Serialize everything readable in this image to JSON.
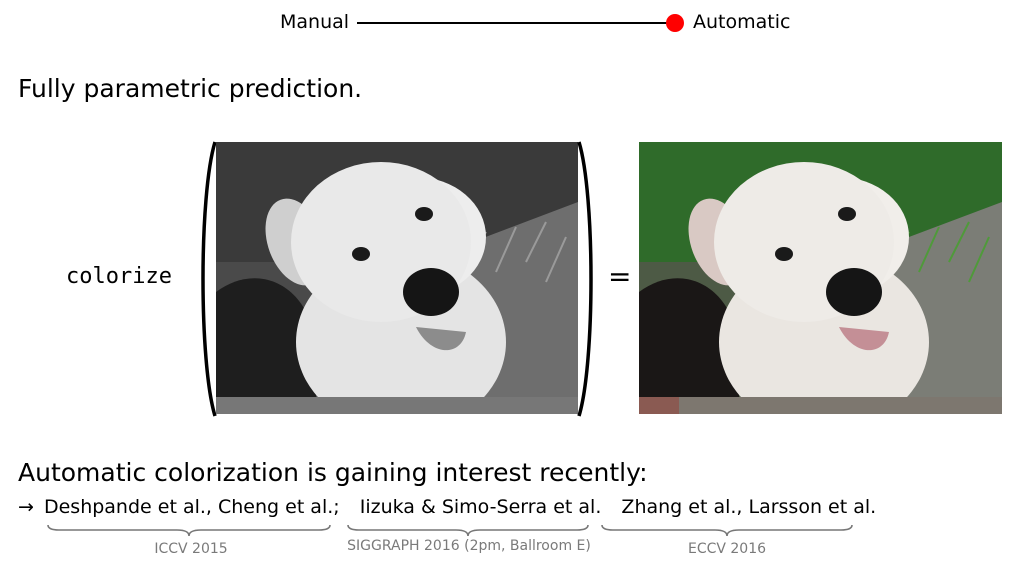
{
  "slider": {
    "left_label": "Manual",
    "right_label": "Automatic",
    "knob_color": "#ff0000"
  },
  "heading": "Fully parametric prediction.",
  "function_name": "colorize",
  "equals": "=",
  "section_heading": "Automatic colorization is gaining interest recently:",
  "refs": {
    "arrow": "→",
    "groups": [
      {
        "text": "Deshpande et al., Cheng et al.",
        "sep": ";",
        "venue": "ICCV 2015"
      },
      {
        "text": "Iizuka & Simo-Serra et al.",
        "sep": "",
        "venue": "SIGGRAPH 2016 (2pm, Ballroom E)"
      },
      {
        "text": "Zhang et al., Larsson et al.",
        "sep": "",
        "venue": "ECCV 2016"
      }
    ]
  },
  "images": {
    "input": {
      "content": "grayscale photo of a white dog",
      "style": "grayscale"
    },
    "output": {
      "content": "colorized photo of a white dog on green grass",
      "style": "color"
    }
  }
}
